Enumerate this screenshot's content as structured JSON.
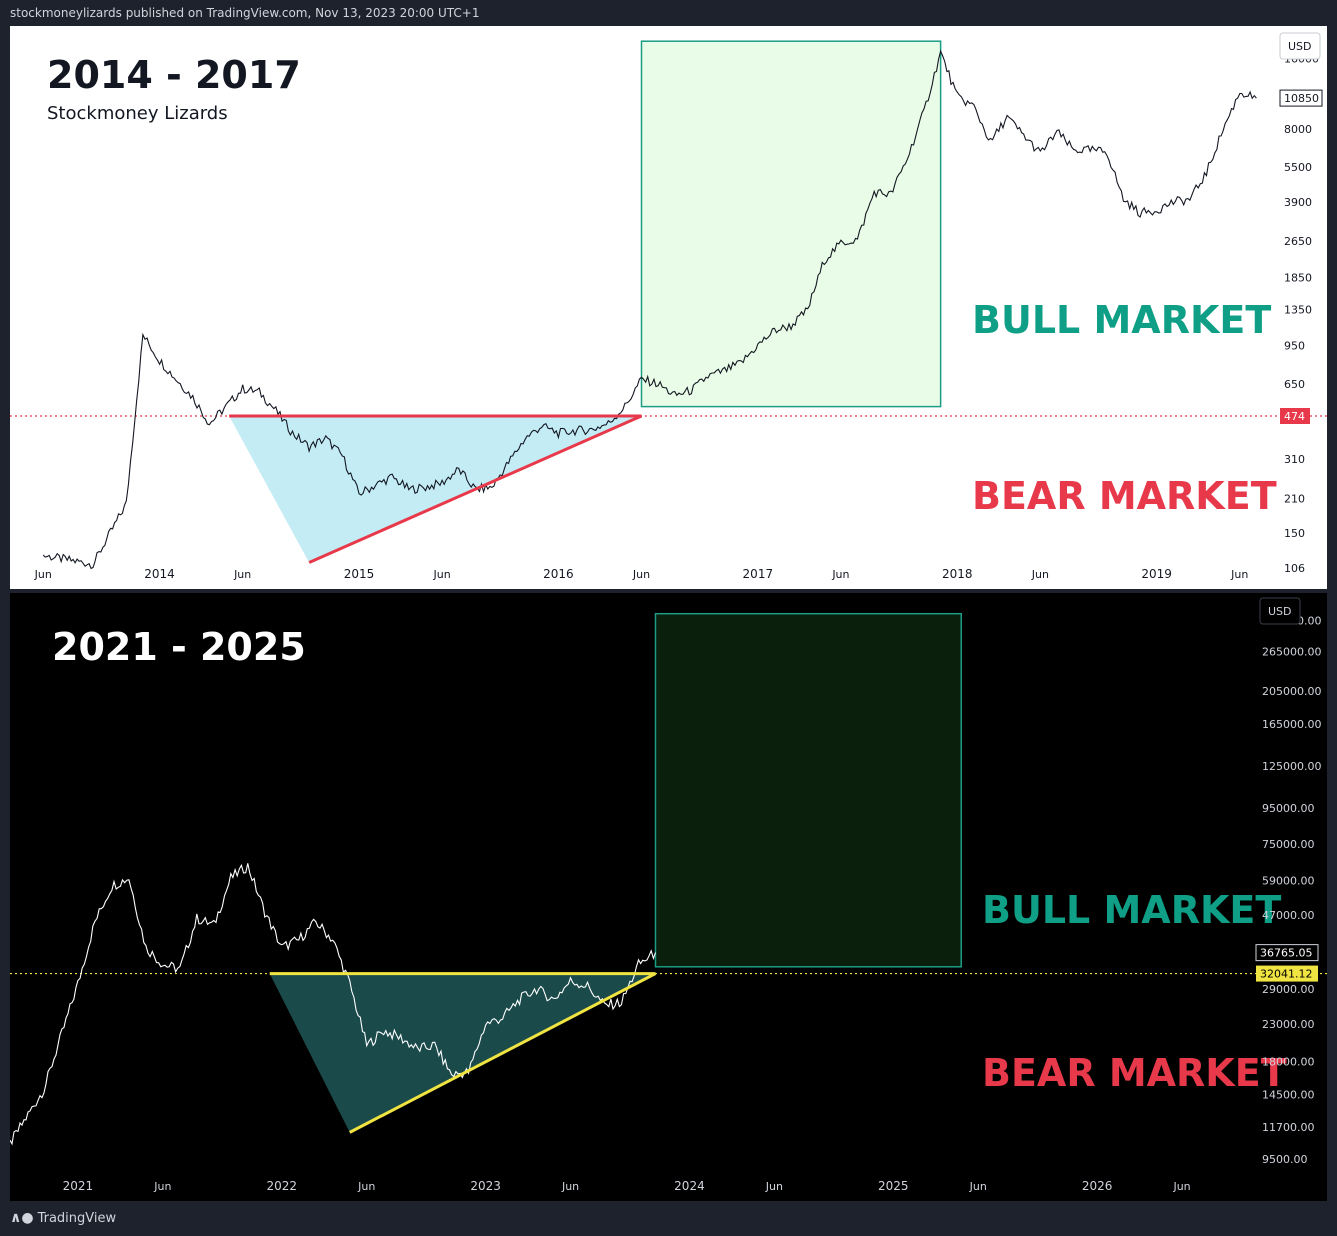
{
  "header": {
    "text": "stockmoneylizards published on TradingView.com, Nov 13, 2023 20:00 UTC+1"
  },
  "footer": {
    "logo": "tradingview-logo-icon",
    "text": "TradingView"
  },
  "colors": {
    "bull": "#0f9f86",
    "bear": "#e8394b",
    "trend_top": "#e8394b",
    "trend_bot": "#f0e442",
    "tri_top": "#c4ecf5",
    "tri_bot": "#1b4a4b",
    "box_top": "#e9fce7",
    "box_bot": "#0a1f0c",
    "box_border": "#1a9c85"
  },
  "chart_data": [
    {
      "type": "line",
      "title": "2014 - 2017",
      "subtitle": "Stockmoney Lizards",
      "currency": "USD",
      "scale": "log",
      "x_tick_labels": [
        "Jun",
        "2014",
        "Jun",
        "2015",
        "Jun",
        "2016",
        "Jun",
        "2017",
        "Jun",
        "2018",
        "Jun",
        "2019",
        "Jun"
      ],
      "y_tick_labels": [
        "16000",
        "8000",
        "5500",
        "3900",
        "2650",
        "1850",
        "1350",
        "950",
        "650",
        "310",
        "210",
        "150",
        "106"
      ],
      "price_tags": [
        {
          "value": "10850",
          "style": "current"
        },
        {
          "value": "474",
          "style": "level"
        }
      ],
      "annotations": [
        "BULL MARKET",
        "BEAR MARKET"
      ],
      "ylim": [
        100,
        20000
      ],
      "series": [
        {
          "x": [
            "2013-06",
            "2013-09",
            "2013-11",
            "2013-12",
            "2014-01",
            "2014-02",
            "2014-03",
            "2014-04",
            "2014-05",
            "2014-06",
            "2014-07",
            "2014-08",
            "2014-09",
            "2014-10",
            "2014-11",
            "2014-12",
            "2015-01",
            "2015-02",
            "2015-03",
            "2015-04",
            "2015-05",
            "2015-06",
            "2015-07",
            "2015-08",
            "2015-09",
            "2015-10",
            "2015-11",
            "2015-12",
            "2016-01",
            "2016-02",
            "2016-03",
            "2016-04",
            "2016-05",
            "2016-06",
            "2016-07",
            "2016-08",
            "2016-09",
            "2016-10",
            "2016-11",
            "2016-12",
            "2017-01",
            "2017-02",
            "2017-03",
            "2017-04",
            "2017-05",
            "2017-06",
            "2017-07",
            "2017-08",
            "2017-09",
            "2017-10",
            "2017-11",
            "2017-12",
            "2018-01",
            "2018-02",
            "2018-03",
            "2018-04",
            "2018-05",
            "2018-06",
            "2018-07",
            "2018-08",
            "2018-09",
            "2018-10",
            "2018-11",
            "2018-12",
            "2019-01",
            "2019-02",
            "2019-03",
            "2019-04",
            "2019-05",
            "2019-06",
            "2019-07"
          ],
          "values": [
            120,
            110,
            200,
            1050,
            820,
            680,
            570,
            440,
            520,
            620,
            600,
            500,
            400,
            350,
            380,
            320,
            220,
            240,
            260,
            230,
            235,
            245,
            280,
            230,
            235,
            300,
            380,
            430,
            400,
            410,
            415,
            440,
            520,
            680,
            650,
            580,
            610,
            700,
            740,
            800,
            950,
            1100,
            1150,
            1350,
            2200,
            2600,
            2700,
            4300,
            4200,
            6000,
            9500,
            17000,
            11000,
            10000,
            7000,
            9000,
            7500,
            6300,
            7800,
            6500,
            6500,
            6400,
            4000,
            3500,
            3600,
            3900,
            4000,
            5200,
            8000,
            11500,
            10850
          ]
        }
      ],
      "pattern": {
        "type": "ascending-triangle",
        "resistance": 474,
        "low": 112,
        "low_date": "2014-10",
        "end_date": "2016-06"
      },
      "projection_box": {
        "from": "2016-06",
        "to": "2017-12",
        "low": 520,
        "high": 19000
      }
    },
    {
      "type": "line",
      "title": "2021 - 2025",
      "currency": "USD",
      "scale": "log",
      "x_tick_labels": [
        "2021",
        "Jun",
        "2022",
        "Jun",
        "2023",
        "Jun",
        "2024",
        "Jun",
        "2025",
        "Jun",
        "2026",
        "Jun"
      ],
      "y_tick_labels": [
        "325000.00",
        "265000.00",
        "205000.00",
        "165000.00",
        "125000.00",
        "95000.00",
        "75000.00",
        "59000.00",
        "47000.00",
        "29000.00",
        "23000.00",
        "18000.00",
        "14500.00",
        "11700.00",
        "9500.00"
      ],
      "price_tags": [
        {
          "value": "36765.05",
          "style": "current"
        },
        {
          "value": "32041.12",
          "style": "level"
        }
      ],
      "annotations": [
        "BULL MARKET",
        "BEAR MARKET"
      ],
      "ylim": [
        8000,
        360000
      ],
      "series": [
        {
          "x": [
            "2020-09",
            "2020-11",
            "2021-01",
            "2021-02",
            "2021-03",
            "2021-04",
            "2021-05",
            "2021-06",
            "2021-07",
            "2021-08",
            "2021-09",
            "2021-10",
            "2021-11",
            "2021-12",
            "2022-01",
            "2022-02",
            "2022-03",
            "2022-04",
            "2022-05",
            "2022-06",
            "2022-07",
            "2022-08",
            "2022-09",
            "2022-10",
            "2022-11",
            "2022-12",
            "2023-01",
            "2023-02",
            "2023-03",
            "2023-04",
            "2023-05",
            "2023-06",
            "2023-07",
            "2023-08",
            "2023-09",
            "2023-10",
            "2023-11"
          ],
          "values": [
            10500,
            15000,
            30000,
            45000,
            57000,
            60000,
            38000,
            34000,
            33000,
            46000,
            44000,
            60000,
            65000,
            48000,
            38000,
            40000,
            45000,
            40000,
            30000,
            20000,
            22000,
            21000,
            19500,
            20000,
            16500,
            16800,
            23000,
            24000,
            27000,
            29000,
            27000,
            30500,
            29500,
            26000,
            26500,
            34000,
            36765
          ]
        }
      ],
      "pattern": {
        "type": "ascending-triangle",
        "resistance": 32041.12,
        "low": 11300,
        "low_date": "2022-05",
        "end_date": "2023-11"
      },
      "projection_box": {
        "from": "2023-11",
        "to": "2025-05",
        "low": 33500,
        "high": 340000
      }
    }
  ]
}
